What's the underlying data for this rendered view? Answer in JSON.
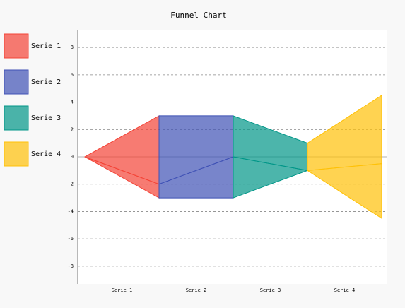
{
  "chart_data": {
    "type": "funnel",
    "title": "Funnel Chart",
    "series": [
      {
        "name": "Serie 1",
        "color": "#F44336",
        "values": [
          1,
          5
        ]
      },
      {
        "name": "Serie 2",
        "color": "#3F51B5",
        "values": [
          3,
          3
        ]
      },
      {
        "name": "Serie 3",
        "color": "#009688",
        "values": [
          0,
          2
        ]
      },
      {
        "name": "Serie 4",
        "color": "#FFC107",
        "values": [
          4,
          5
        ]
      }
    ],
    "ylim": [
      -9.3,
      9.3
    ],
    "yticks": [
      -8,
      -6,
      -4,
      -2,
      0,
      2,
      4,
      6,
      8
    ],
    "grid": true,
    "legend": "left"
  }
}
